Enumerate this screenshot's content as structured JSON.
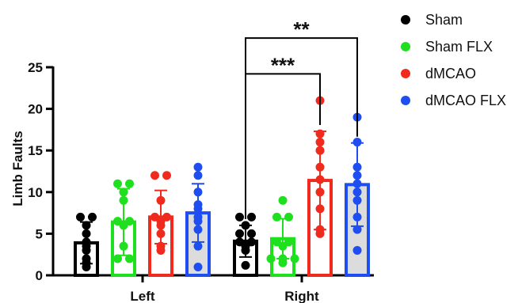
{
  "chart_data": {
    "type": "bar",
    "title": "",
    "xlabel": "",
    "ylabel": "Limb Faults",
    "ylim": [
      0,
      25
    ],
    "yticks": [
      0,
      5,
      10,
      15,
      20,
      25
    ],
    "categories": [
      "Left",
      "Right"
    ],
    "legend_position": "top-right",
    "series": [
      {
        "name": "Sham",
        "color": "#000000",
        "fill": "#ffffff",
        "values": [
          3.9,
          4.1
        ],
        "sd": [
          2.5,
          1.9
        ],
        "points": [
          [
            1,
            1.5,
            2,
            3,
            3.5,
            4,
            5,
            6,
            7,
            7
          ],
          [
            1.2,
            3,
            3.5,
            4,
            4,
            5,
            5,
            6,
            7,
            7
          ]
        ]
      },
      {
        "name": "Sham FLX",
        "color": "#1ee01e",
        "fill": "#ffffff",
        "values": [
          6.4,
          4.4
        ],
        "sd": [
          4.0,
          2.4
        ],
        "points": [
          [
            2,
            2,
            3.5,
            6,
            6.5,
            6.5,
            9,
            10,
            11,
            11
          ],
          [
            1.5,
            2,
            2,
            2,
            3.5,
            4,
            4,
            7,
            7,
            9
          ]
        ]
      },
      {
        "name": "dMCAO",
        "color": "#f02b1e",
        "fill": "#ffffff",
        "values": [
          7.0,
          11.4
        ],
        "sd": [
          3.2,
          5.9
        ],
        "points": [
          [
            3,
            3.5,
            5,
            6,
            6.5,
            7,
            7,
            9,
            12,
            12
          ],
          [
            5,
            5.5,
            8,
            10,
            11.5,
            13,
            15,
            16,
            17,
            21
          ]
        ]
      },
      {
        "name": "dMCAO FLX",
        "color": "#1f4ef0",
        "fill": "#dcdcdc",
        "values": [
          7.5,
          10.9
        ],
        "sd": [
          3.5,
          5.0
        ],
        "points": [
          [
            1,
            3.5,
            5.5,
            6.5,
            7,
            8,
            8.5,
            10,
            12,
            13
          ],
          [
            3,
            5.5,
            7,
            9,
            10,
            11,
            12,
            13,
            16,
            19
          ]
        ]
      }
    ],
    "annotations": [
      {
        "text": "***",
        "group": "Right",
        "from_series": 0,
        "to_series": 2,
        "y": 24.2
      },
      {
        "text": "**",
        "group": "Right",
        "from_series": 0,
        "to_series": 3,
        "y": 28.5
      }
    ]
  }
}
